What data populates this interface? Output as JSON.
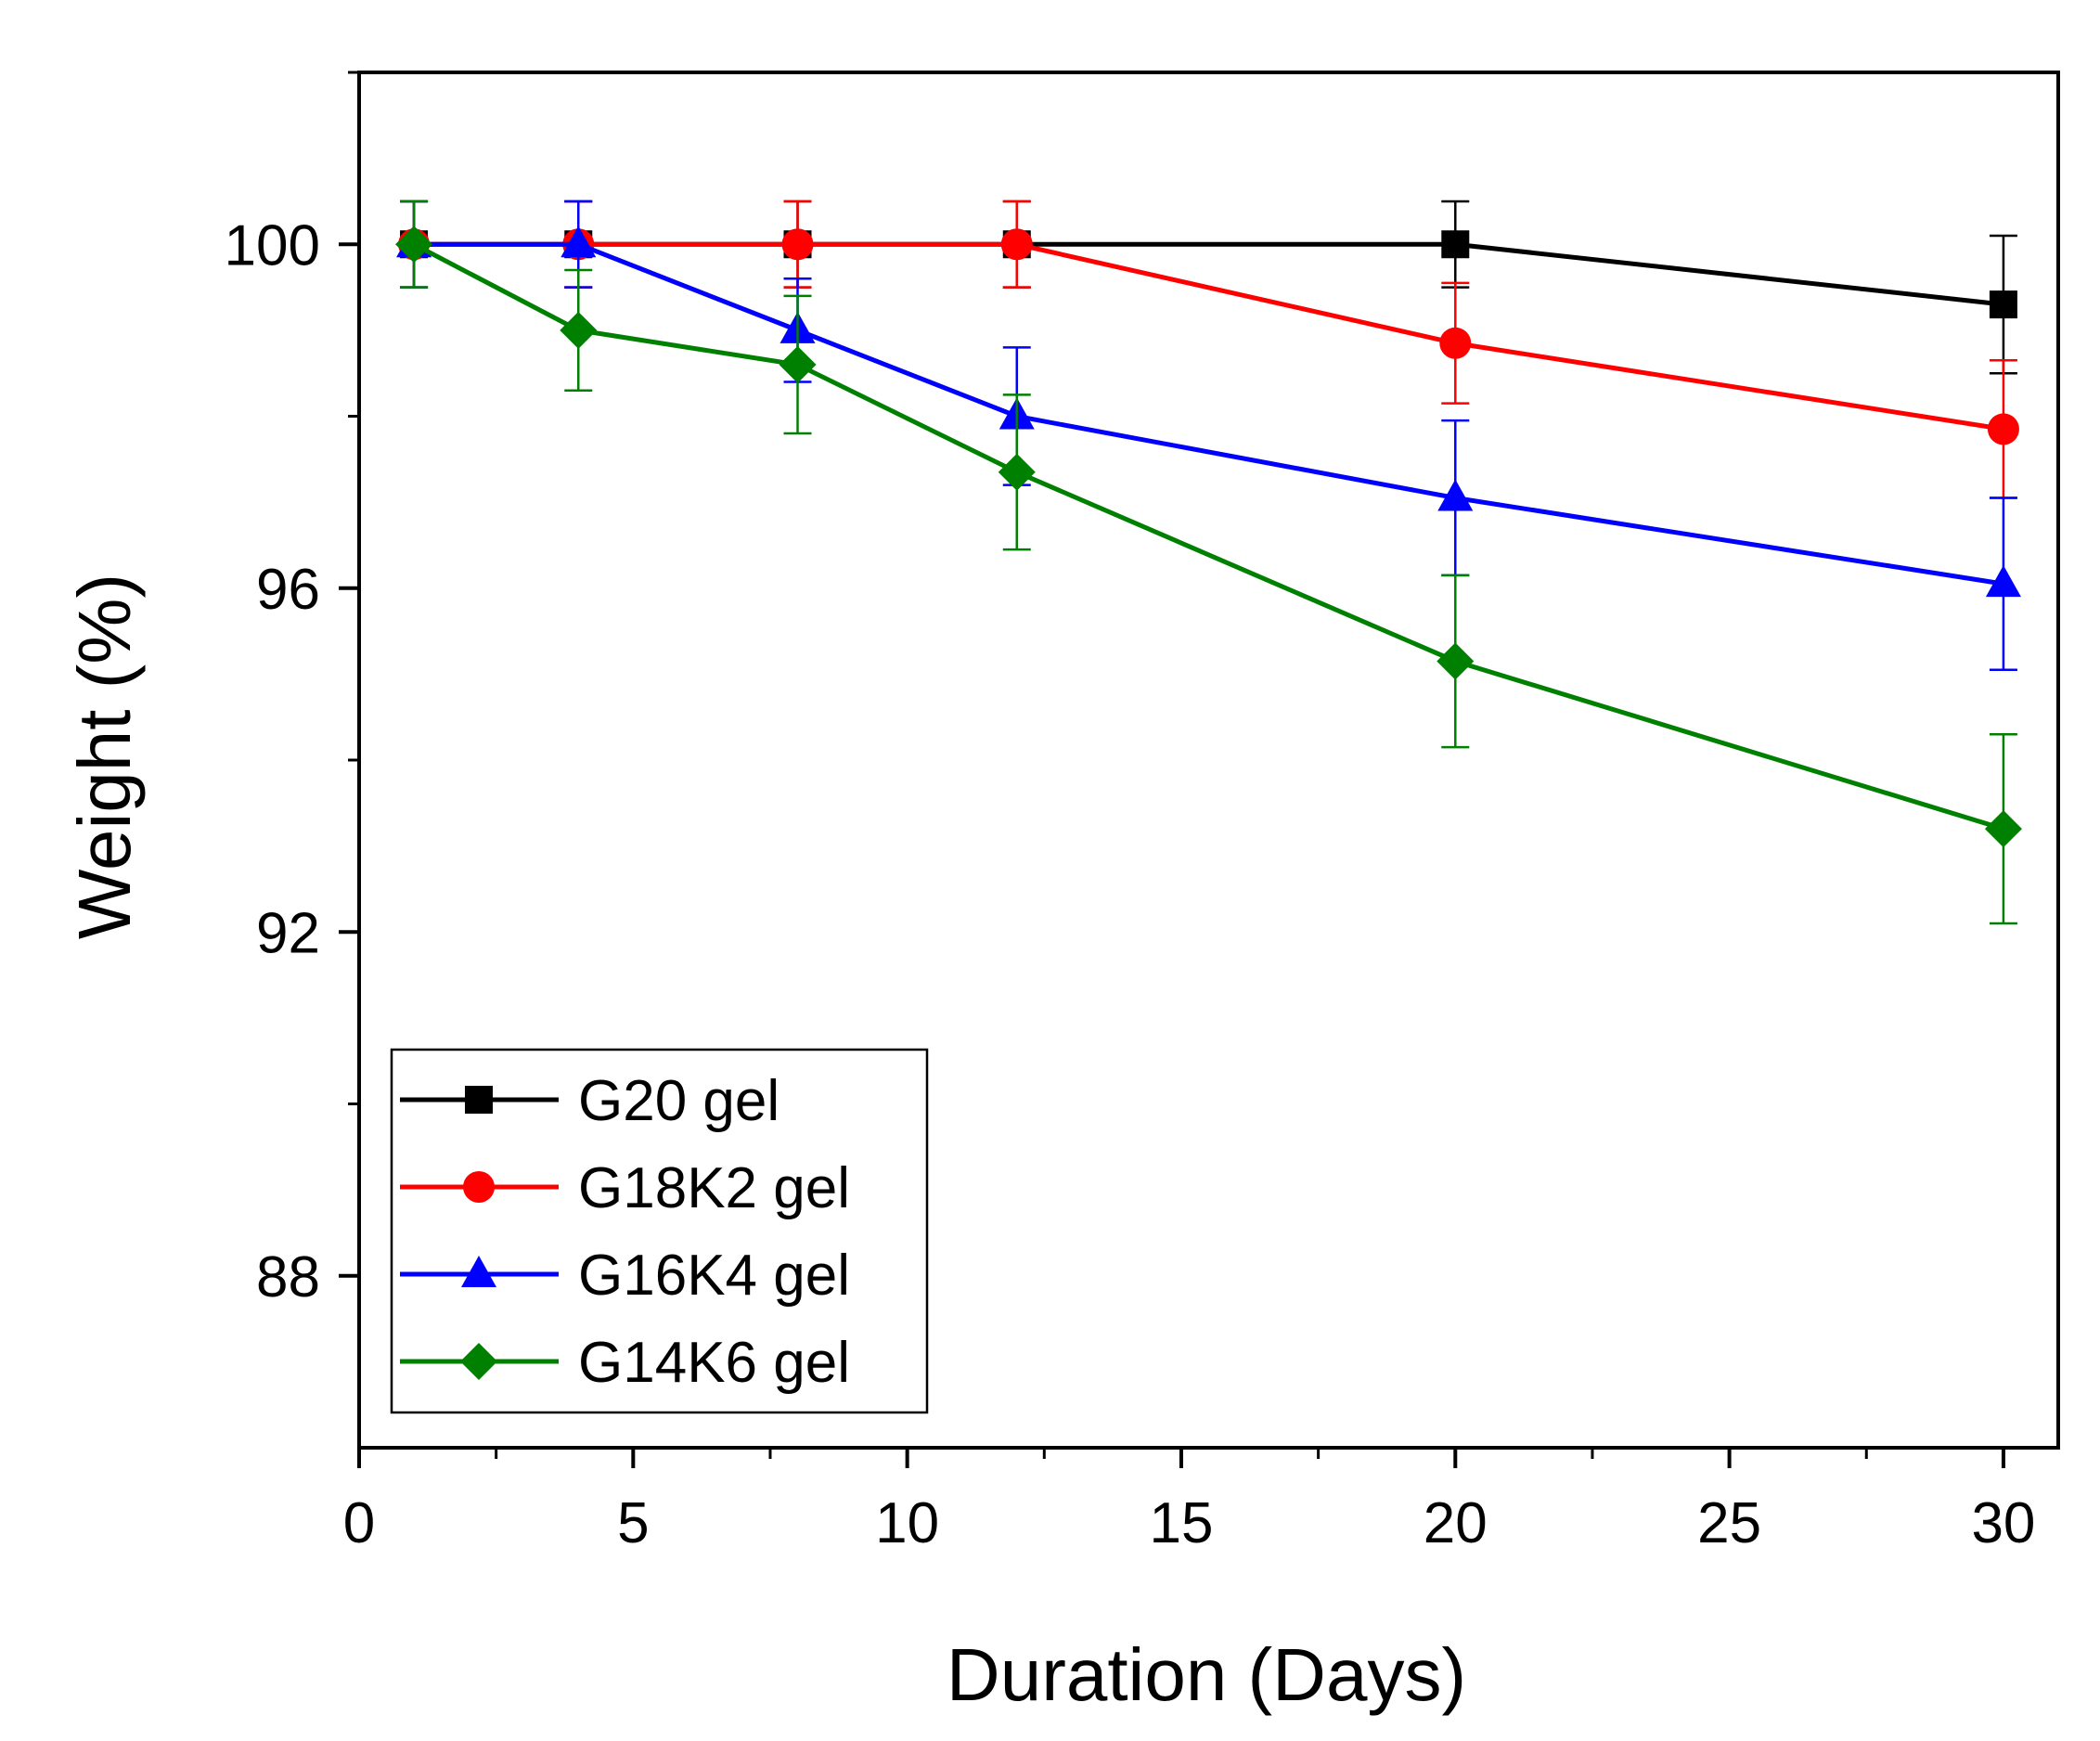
{
  "chart_data": {
    "type": "line",
    "title": "",
    "xlabel": "Duration (Days)",
    "ylabel": "Weight (%)",
    "xlim": [
      0,
      31
    ],
    "ylim": [
      86,
      102
    ],
    "xticks": [
      0,
      5,
      10,
      15,
      20,
      25,
      30
    ],
    "xminor_ticks": [
      2.5,
      7.5,
      12.5,
      17.5,
      22.5,
      27.5
    ],
    "yticks": [
      88,
      92,
      96,
      100
    ],
    "yminor_ticks": [
      90,
      94,
      98,
      102
    ],
    "xtick_labels": [
      "0",
      "5",
      "10",
      "15",
      "20",
      "25",
      "30"
    ],
    "ytick_labels": [
      "88",
      "92",
      "96",
      "100"
    ],
    "grid": false,
    "legend_position": "bottom-left",
    "x": [
      1,
      4,
      8,
      12,
      20,
      30
    ],
    "series": [
      {
        "name": "G20 gel",
        "label": "G20 gel",
        "color": "#000000",
        "marker": "square",
        "values": [
          100,
          100,
          100,
          100,
          100,
          99.3
        ],
        "errors": [
          0.5,
          0.5,
          0.5,
          0.5,
          0.5,
          0.8
        ]
      },
      {
        "name": "G18K2 gel",
        "label": "G18K2 gel",
        "color": "#ff0000",
        "marker": "circle",
        "values": [
          100,
          100,
          100,
          100,
          98.85,
          97.85
        ],
        "errors": [
          0.5,
          0.5,
          0.5,
          0.5,
          0.7,
          0.8
        ]
      },
      {
        "name": "G16K4 gel",
        "label": "G16K4 gel",
        "color": "#0000ff",
        "marker": "triangle",
        "values": [
          100,
          100,
          99.0,
          98.0,
          97.05,
          96.05
        ],
        "errors": [
          0.5,
          0.5,
          0.6,
          0.8,
          0.9,
          1.0
        ]
      },
      {
        "name": "G14K6 gel",
        "label": "G14K6 gel",
        "color": "#008000",
        "marker": "diamond",
        "values": [
          100,
          99.0,
          98.6,
          97.35,
          95.15,
          93.2
        ],
        "errors": [
          0.5,
          0.7,
          0.8,
          0.9,
          1.0,
          1.1
        ]
      }
    ]
  }
}
